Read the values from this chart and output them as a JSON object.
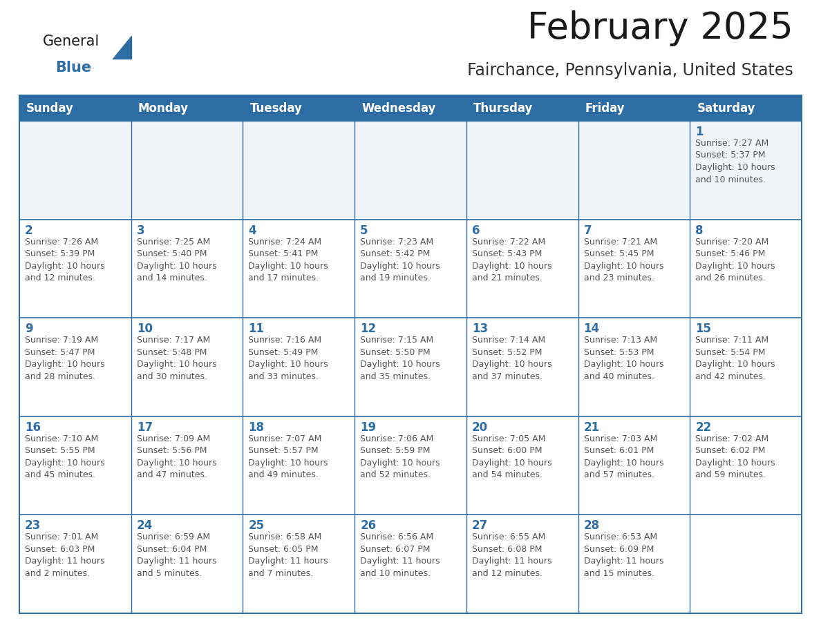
{
  "title": "February 2025",
  "subtitle": "Fairchance, Pennsylvania, United States",
  "header_bg": "#2e6da4",
  "header_text_color": "#ffffff",
  "cell_bg": "#ffffff",
  "row1_bg": "#f0f4f8",
  "cell_border_color": "#2e6da4",
  "day_num_color": "#2e6da4",
  "info_text_color": "#555555",
  "days_of_week": [
    "Sunday",
    "Monday",
    "Tuesday",
    "Wednesday",
    "Thursday",
    "Friday",
    "Saturday"
  ],
  "weeks": [
    [
      {
        "day": null,
        "info": null
      },
      {
        "day": null,
        "info": null
      },
      {
        "day": null,
        "info": null
      },
      {
        "day": null,
        "info": null
      },
      {
        "day": null,
        "info": null
      },
      {
        "day": null,
        "info": null
      },
      {
        "day": "1",
        "info": "Sunrise: 7:27 AM\nSunset: 5:37 PM\nDaylight: 10 hours\nand 10 minutes."
      }
    ],
    [
      {
        "day": "2",
        "info": "Sunrise: 7:26 AM\nSunset: 5:39 PM\nDaylight: 10 hours\nand 12 minutes."
      },
      {
        "day": "3",
        "info": "Sunrise: 7:25 AM\nSunset: 5:40 PM\nDaylight: 10 hours\nand 14 minutes."
      },
      {
        "day": "4",
        "info": "Sunrise: 7:24 AM\nSunset: 5:41 PM\nDaylight: 10 hours\nand 17 minutes."
      },
      {
        "day": "5",
        "info": "Sunrise: 7:23 AM\nSunset: 5:42 PM\nDaylight: 10 hours\nand 19 minutes."
      },
      {
        "day": "6",
        "info": "Sunrise: 7:22 AM\nSunset: 5:43 PM\nDaylight: 10 hours\nand 21 minutes."
      },
      {
        "day": "7",
        "info": "Sunrise: 7:21 AM\nSunset: 5:45 PM\nDaylight: 10 hours\nand 23 minutes."
      },
      {
        "day": "8",
        "info": "Sunrise: 7:20 AM\nSunset: 5:46 PM\nDaylight: 10 hours\nand 26 minutes."
      }
    ],
    [
      {
        "day": "9",
        "info": "Sunrise: 7:19 AM\nSunset: 5:47 PM\nDaylight: 10 hours\nand 28 minutes."
      },
      {
        "day": "10",
        "info": "Sunrise: 7:17 AM\nSunset: 5:48 PM\nDaylight: 10 hours\nand 30 minutes."
      },
      {
        "day": "11",
        "info": "Sunrise: 7:16 AM\nSunset: 5:49 PM\nDaylight: 10 hours\nand 33 minutes."
      },
      {
        "day": "12",
        "info": "Sunrise: 7:15 AM\nSunset: 5:50 PM\nDaylight: 10 hours\nand 35 minutes."
      },
      {
        "day": "13",
        "info": "Sunrise: 7:14 AM\nSunset: 5:52 PM\nDaylight: 10 hours\nand 37 minutes."
      },
      {
        "day": "14",
        "info": "Sunrise: 7:13 AM\nSunset: 5:53 PM\nDaylight: 10 hours\nand 40 minutes."
      },
      {
        "day": "15",
        "info": "Sunrise: 7:11 AM\nSunset: 5:54 PM\nDaylight: 10 hours\nand 42 minutes."
      }
    ],
    [
      {
        "day": "16",
        "info": "Sunrise: 7:10 AM\nSunset: 5:55 PM\nDaylight: 10 hours\nand 45 minutes."
      },
      {
        "day": "17",
        "info": "Sunrise: 7:09 AM\nSunset: 5:56 PM\nDaylight: 10 hours\nand 47 minutes."
      },
      {
        "day": "18",
        "info": "Sunrise: 7:07 AM\nSunset: 5:57 PM\nDaylight: 10 hours\nand 49 minutes."
      },
      {
        "day": "19",
        "info": "Sunrise: 7:06 AM\nSunset: 5:59 PM\nDaylight: 10 hours\nand 52 minutes."
      },
      {
        "day": "20",
        "info": "Sunrise: 7:05 AM\nSunset: 6:00 PM\nDaylight: 10 hours\nand 54 minutes."
      },
      {
        "day": "21",
        "info": "Sunrise: 7:03 AM\nSunset: 6:01 PM\nDaylight: 10 hours\nand 57 minutes."
      },
      {
        "day": "22",
        "info": "Sunrise: 7:02 AM\nSunset: 6:02 PM\nDaylight: 10 hours\nand 59 minutes."
      }
    ],
    [
      {
        "day": "23",
        "info": "Sunrise: 7:01 AM\nSunset: 6:03 PM\nDaylight: 11 hours\nand 2 minutes."
      },
      {
        "day": "24",
        "info": "Sunrise: 6:59 AM\nSunset: 6:04 PM\nDaylight: 11 hours\nand 5 minutes."
      },
      {
        "day": "25",
        "info": "Sunrise: 6:58 AM\nSunset: 6:05 PM\nDaylight: 11 hours\nand 7 minutes."
      },
      {
        "day": "26",
        "info": "Sunrise: 6:56 AM\nSunset: 6:07 PM\nDaylight: 11 hours\nand 10 minutes."
      },
      {
        "day": "27",
        "info": "Sunrise: 6:55 AM\nSunset: 6:08 PM\nDaylight: 11 hours\nand 12 minutes."
      },
      {
        "day": "28",
        "info": "Sunrise: 6:53 AM\nSunset: 6:09 PM\nDaylight: 11 hours\nand 15 minutes."
      },
      {
        "day": null,
        "info": null
      }
    ]
  ],
  "logo_general_color": "#1a1a1a",
  "logo_blue_color": "#2e6da4",
  "title_fontsize": 38,
  "subtitle_fontsize": 17,
  "header_fontsize": 12,
  "day_num_fontsize": 12,
  "info_fontsize": 9
}
